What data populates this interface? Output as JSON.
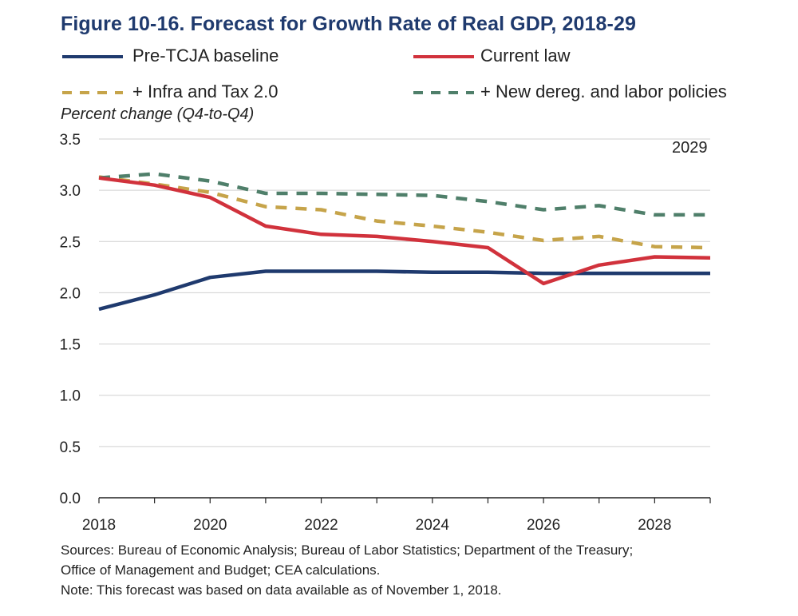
{
  "title": "Figure 10-16. Forecast for Growth Rate of Real GDP, 2018-29",
  "units_label": "Percent change (Q4-to-Q4)",
  "year_note": "2029",
  "legend": [
    {
      "label": "Pre-TCJA baseline",
      "color": "#1f3a6e",
      "style": "solid"
    },
    {
      "label": "Current law",
      "color": "#d1323c",
      "style": "solid"
    },
    {
      "label": "+ Infra and Tax 2.0",
      "color": "#c6a44a",
      "style": "dashed"
    },
    {
      "label": "+ New dereg. and labor policies",
      "color": "#4f7f6a",
      "style": "dashed"
    }
  ],
  "chart_data": {
    "type": "line",
    "title": "Figure 10-16. Forecast for Growth Rate of Real GDP, 2018-29",
    "ylabel": "Percent change (Q4-to-Q4)",
    "xlabel": "",
    "x": [
      2018,
      2019,
      2020,
      2021,
      2022,
      2023,
      2024,
      2025,
      2026,
      2027,
      2028,
      2029
    ],
    "xlim": [
      2018,
      2029
    ],
    "ylim": [
      0,
      3.5
    ],
    "x_ticks": [
      "2018",
      "2020",
      "2022",
      "2024",
      "2026",
      "2028"
    ],
    "y_ticks": [
      "0.0",
      "0.5",
      "1.0",
      "1.5",
      "2.0",
      "2.5",
      "3.0",
      "3.5"
    ],
    "grid": true,
    "series": [
      {
        "name": "Pre-TCJA baseline",
        "color": "#1f3a6e",
        "style": "solid",
        "values": [
          1.84,
          1.98,
          2.15,
          2.21,
          2.21,
          2.21,
          2.2,
          2.2,
          2.19,
          2.19,
          2.19,
          2.19
        ]
      },
      {
        "name": "Current law",
        "color": "#d1323c",
        "style": "solid",
        "values": [
          3.12,
          3.05,
          2.93,
          2.65,
          2.57,
          2.55,
          2.5,
          2.44,
          2.09,
          2.27,
          2.35,
          2.34
        ]
      },
      {
        "name": "+ Infra and Tax 2.0",
        "color": "#c6a44a",
        "style": "dashed",
        "values": [
          3.13,
          3.06,
          2.98,
          2.84,
          2.81,
          2.7,
          2.65,
          2.59,
          2.51,
          2.55,
          2.45,
          2.44
        ]
      },
      {
        "name": "+ New dereg. and labor policies",
        "color": "#4f7f6a",
        "style": "dashed",
        "values": [
          3.12,
          3.16,
          3.09,
          2.97,
          2.97,
          2.96,
          2.95,
          2.89,
          2.81,
          2.85,
          2.76,
          2.76
        ]
      }
    ]
  },
  "footer": {
    "sources_line1": "Sources: Bureau of Economic Analysis; Bureau of Labor Statistics; Department of the Treasury;",
    "sources_line2": "Office of Management and Budget; CEA calculations.",
    "note": "Note: This forecast was based on data available as of November 1, 2018."
  }
}
